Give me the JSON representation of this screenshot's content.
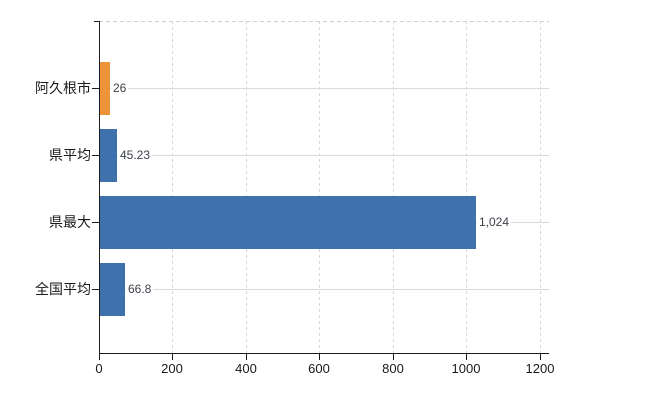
{
  "chart_data": {
    "type": "bar",
    "orientation": "horizontal",
    "title": "",
    "xlabel": "",
    "ylabel": "",
    "legend_position": "none",
    "grid": "on",
    "categories": [
      "阿久根市",
      "県平均",
      "県最大",
      "全国平均"
    ],
    "values": [
      26,
      45.23,
      1024,
      66.8
    ],
    "value_labels": [
      "26",
      "45.23",
      "1,024",
      "66.8"
    ],
    "bar_colors": [
      "#ed9438",
      "#3f72ad",
      "#3f72ad",
      "#3f72ad"
    ],
    "highlight_category": "阿久根市",
    "accent_color": "#ed9438",
    "default_bar_color": "#3f72ad",
    "x_ticks": [
      0,
      200,
      400,
      600,
      800,
      1000,
      1200
    ],
    "x_tick_labels": [
      "0",
      "200",
      "400",
      "600",
      "800",
      "1000",
      "1200"
    ],
    "xlim": [
      0,
      1225
    ]
  }
}
